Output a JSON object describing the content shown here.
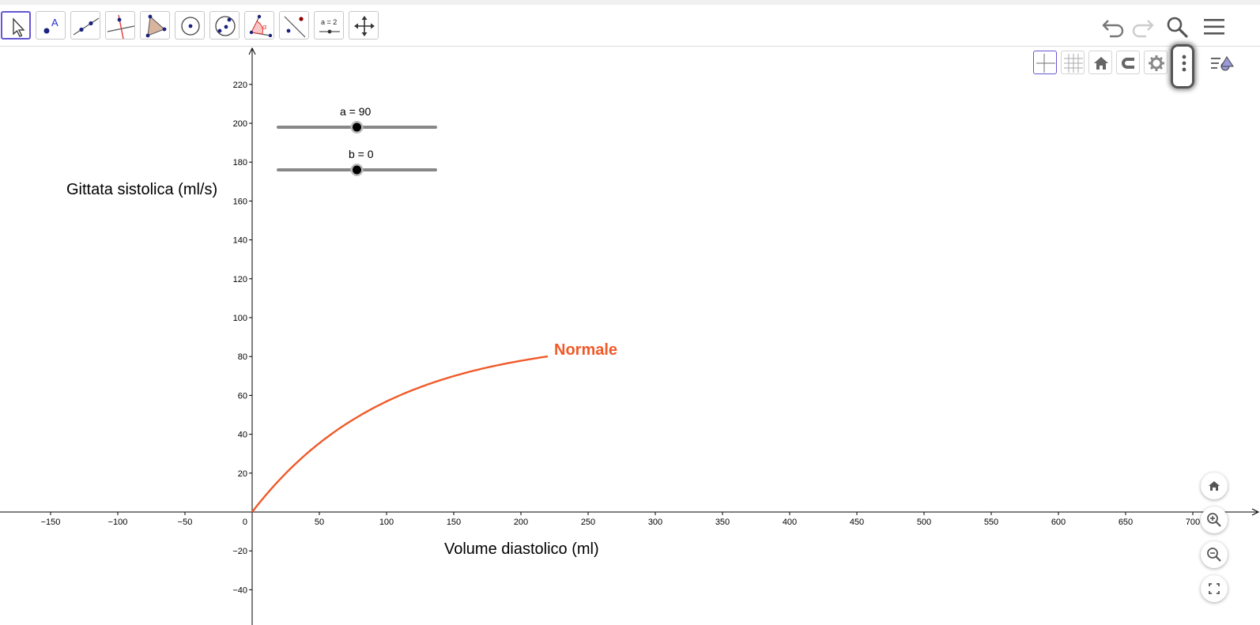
{
  "toolbar": {
    "tools": [
      {
        "name": "move-tool",
        "active": true
      },
      {
        "name": "point-tool",
        "glyph": "A"
      },
      {
        "name": "line-tool"
      },
      {
        "name": "perpendicular-line-tool"
      },
      {
        "name": "polygon-tool"
      },
      {
        "name": "circle-center-point-tool"
      },
      {
        "name": "circle-three-points-tool"
      },
      {
        "name": "angle-tool",
        "glyph": "α"
      },
      {
        "name": "reflect-tool"
      },
      {
        "name": "slider-tool",
        "glyph": "a = 2"
      },
      {
        "name": "move-graphics-view-tool"
      }
    ],
    "right_icons": [
      "undo-icon",
      "redo-icon",
      "search-icon",
      "menu-icon"
    ]
  },
  "style_bar": {
    "buttons": [
      "axes-toggle-icon",
      "grid-toggle-icon",
      "standard-view-icon",
      "point-capturing-icon",
      "graphics-settings-icon",
      "more-options-icon"
    ],
    "toggle_style_bar_icon": "style-bar-toggle-icon"
  },
  "sliders": [
    {
      "label": "a = 90",
      "value": 90,
      "min": 0,
      "max": 180
    },
    {
      "label": "b = 0",
      "value": 0,
      "min": -100,
      "max": 100
    }
  ],
  "axes": {
    "x_title": "Volume diastolico (ml)",
    "y_title": "Gittata sistolica (ml/s)",
    "x_ticks": [
      "−150",
      "−100",
      "−50",
      "50",
      "100",
      "150",
      "200",
      "250",
      "300",
      "350",
      "400",
      "450",
      "500",
      "550",
      "600",
      "650",
      "700"
    ],
    "y_ticks": [
      "−40",
      "−20",
      "20",
      "40",
      "60",
      "80",
      "100",
      "120",
      "140",
      "160",
      "180",
      "200",
      "220"
    ],
    "origin_label": "0"
  },
  "curve": {
    "label": "Normale",
    "color": "#f05a28",
    "function": "a * (1 - exp(-x / 100)) + b",
    "x_range": [
      0,
      220
    ]
  },
  "zoom_controls": [
    "standard-view-icon",
    "zoom-in-icon",
    "zoom-out-icon",
    "fullscreen-icon"
  ],
  "colors": {
    "accent": "#6557d2",
    "curve": "#f05a28",
    "axis": "#000000"
  }
}
